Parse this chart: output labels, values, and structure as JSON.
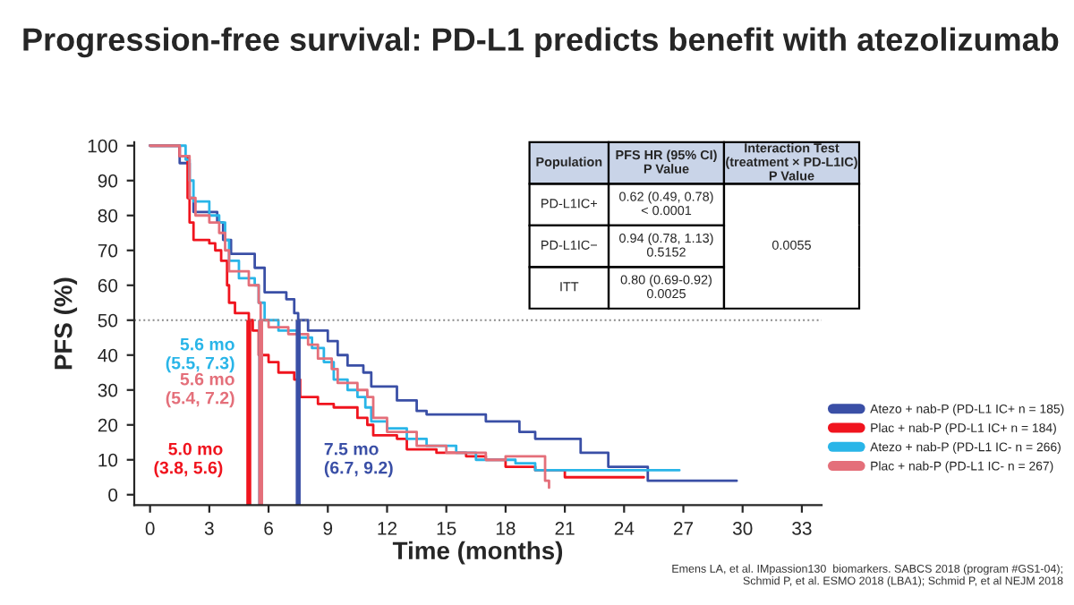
{
  "chart_data": {
    "type": "step",
    "title": "Progression-free survival: PD-L1 predicts benefit with atezolizumab",
    "xlabel": "Time (months)",
    "ylabel": "PFS (%)",
    "xlim": [
      -0.8,
      34
    ],
    "ylim": [
      -3,
      101
    ],
    "xticks": [
      0,
      3,
      6,
      9,
      12,
      15,
      18,
      21,
      24,
      27,
      30,
      33
    ],
    "yticks": [
      0,
      10,
      20,
      30,
      40,
      50,
      60,
      70,
      80,
      90,
      100
    ],
    "grid": false,
    "legend": "right",
    "series": [
      {
        "name": "Atezo + nab-P (PD-L1 IC+ n = 185)",
        "color": "#3a4fa6",
        "x": [
          0,
          1.5,
          2.0,
          2.2,
          3.4,
          3.7,
          4.1,
          5.3,
          5.8,
          6.9,
          7.3,
          7.5,
          8.0,
          9.0,
          9.5,
          10.0,
          10.8,
          11.2,
          12.5,
          13.5,
          14.0,
          17.0,
          18.7,
          19.5,
          21.8,
          23.2,
          25.2,
          29.7
        ],
        "values": [
          100,
          95,
          85,
          81,
          78,
          73,
          69,
          65,
          58,
          56,
          52,
          50,
          47,
          44,
          40,
          37,
          35,
          31,
          27,
          24,
          23,
          21,
          18,
          16,
          12,
          8,
          4,
          4
        ]
      },
      {
        "name": "Plac + nab-P (PD-L1 IC+ n = 184)",
        "color": "#f0141e",
        "x": [
          0,
          1.5,
          1.9,
          2.0,
          2.2,
          3.0,
          3.3,
          3.6,
          3.9,
          4.0,
          4.3,
          5.0,
          5.2,
          5.5,
          6.0,
          6.5,
          7.3,
          7.6,
          8.5,
          9.3,
          10.5,
          11.0,
          11.3,
          12.5,
          13.0,
          14.5,
          16.0,
          17.0,
          18.0,
          19.5,
          21.0,
          25.0
        ],
        "values": [
          100,
          97,
          85,
          78,
          73,
          72,
          70,
          67,
          60,
          55,
          52,
          50,
          47,
          40,
          38,
          35,
          33,
          28,
          26,
          25,
          22,
          20,
          17,
          16,
          13,
          12,
          11,
          10,
          8,
          7,
          5,
          5
        ]
      },
      {
        "name": "Atezo + nab-P (PD-L1 IC- n = 266)",
        "color": "#29b5e8",
        "x": [
          0,
          1.8,
          2.0,
          2.2,
          3.0,
          3.5,
          3.8,
          4.0,
          4.5,
          5.3,
          5.5,
          5.8,
          6.5,
          7.5,
          8.2,
          8.8,
          9.3,
          10.0,
          10.5,
          10.9,
          11.2,
          12.0,
          13.0,
          14.0,
          15.5,
          16.5,
          18.5,
          19.5,
          26.8
        ],
        "values": [
          100,
          96,
          90,
          84,
          80,
          78,
          73,
          67,
          62,
          60,
          55,
          50,
          47,
          45,
          42,
          38,
          33,
          30,
          28,
          25,
          21,
          19,
          16,
          14,
          12,
          10,
          9,
          7,
          7
        ]
      },
      {
        "name": "Plac + nab-P (PD-L1 IC- n = 267)",
        "color": "#e46f7a",
        "x": [
          0,
          1.5,
          2.0,
          2.3,
          3.0,
          3.5,
          3.8,
          4.0,
          5.0,
          5.5,
          5.6,
          6.0,
          7.0,
          8.0,
          8.5,
          9.2,
          9.5,
          10.5,
          11.0,
          11.3,
          12.0,
          13.5,
          15.0,
          17.0,
          18.0,
          20.0,
          20.2
        ],
        "values": [
          100,
          97,
          85,
          80,
          78,
          75,
          70,
          64,
          60,
          55,
          50,
          48,
          46,
          43,
          39,
          36,
          32,
          30,
          28,
          22,
          18,
          14,
          12,
          10,
          11,
          4,
          2
        ]
      }
    ],
    "ref_lines": [
      {
        "axis": "y",
        "value": 50,
        "color": "#888888",
        "line_style": "dotted"
      },
      {
        "axis": "x",
        "value": 5.0,
        "label": "5.0 mo\n(3.8, 5.6)",
        "color": "#f0141e"
      },
      {
        "axis": "x",
        "value": 5.6,
        "label": "5.6 mo\n(5.5, 7.3)",
        "color": "#29b5e8"
      },
      {
        "axis": "x",
        "value": 5.6,
        "label": "5.6 mo\n(5.4, 7.2)",
        "color": "#e46f7a"
      },
      {
        "axis": "x",
        "value": 7.5,
        "label": "7.5 mo\n(6.7, 9.2)",
        "color": "#3a4fa6"
      }
    ],
    "annotations": [
      "Population",
      "PFS HR (95% CI)\nP Value",
      "Interaction Test\n(treatment × PD-L1IC)\nP Value",
      "PD-L1IC+",
      "0.62 (0.49, 0.78)\n< 0.0001",
      "0.0055",
      "PD-L1IC−",
      "0.94 (0.78, 1.13)\n0.5152",
      "ITT",
      "0.80 (0.69-0.92)\n0.0025",
      "Emens LA, et al. IMpassion130  biomarkers. SABCS 2018 (program #GS1-04);\nSchmid P, et al. ESMO 2018 (LBA1); Schmid P, et al NEJM 2018"
    ]
  }
}
